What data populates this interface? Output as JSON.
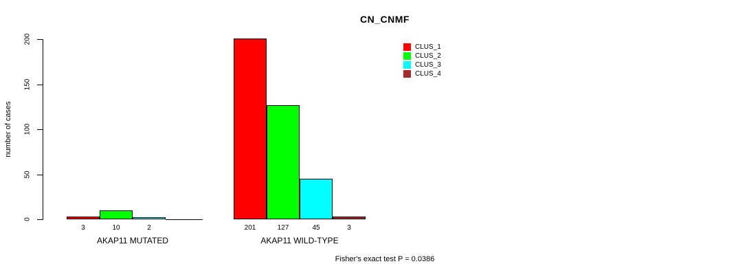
{
  "chart_data": {
    "type": "bar",
    "title": "CN_CNMF",
    "ylabel": "number of cases",
    "ylim": [
      0,
      200
    ],
    "yticks": [
      0,
      50,
      100,
      150,
      200
    ],
    "grid": false,
    "legend_position": "top-right",
    "categories": [
      "AKAP11 MUTATED",
      "AKAP11 WILD-TYPE"
    ],
    "series": [
      {
        "name": "CLUS_1",
        "color": "#ff0000",
        "values": [
          3,
          201
        ]
      },
      {
        "name": "CLUS_2",
        "color": "#00ff00",
        "values": [
          10,
          127
        ]
      },
      {
        "name": "CLUS_3",
        "color": "#00ffff",
        "values": [
          2,
          45
        ]
      },
      {
        "name": "CLUS_4",
        "color": "#a52a2a",
        "values": [
          0,
          3
        ]
      }
    ],
    "bar_value_labels": [
      [
        "3",
        "10",
        "2",
        ""
      ],
      [
        "201",
        "127",
        "45",
        "3"
      ]
    ],
    "annotation": "Fisher's exact test P = 0.0386"
  }
}
